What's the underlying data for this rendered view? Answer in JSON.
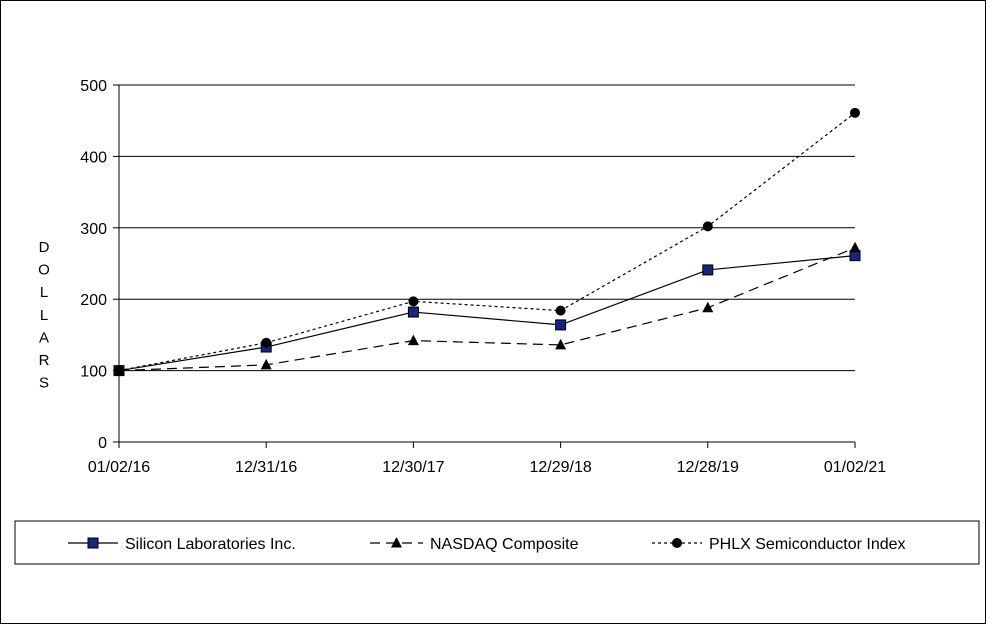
{
  "chart_data": {
    "type": "line",
    "categories": [
      "01/02/16",
      "12/31/16",
      "12/30/17",
      "12/29/18",
      "12/28/19",
      "01/02/21"
    ],
    "ylabel": "DOLLARS",
    "ylim": [
      0,
      500
    ],
    "yticks": [
      0,
      100,
      200,
      300,
      400,
      500
    ],
    "grid": true,
    "legend_position": "bottom",
    "series": [
      {
        "name": "Silicon Laboratories Inc.",
        "values": [
          100,
          133,
          182,
          164,
          241,
          261
        ],
        "line_style": "solid",
        "marker": "square",
        "marker_color": "#1a237e",
        "line_color": "#000000"
      },
      {
        "name": "NASDAQ Composite",
        "values": [
          100,
          108,
          142,
          136,
          188,
          272
        ],
        "line_style": "dashed",
        "marker": "triangle",
        "marker_color": "#000000",
        "line_color": "#000000"
      },
      {
        "name": "PHLX Semiconductor Index",
        "values": [
          100,
          139,
          197,
          184,
          302,
          461
        ],
        "line_style": "dotted",
        "marker": "circle",
        "marker_color": "#000000",
        "line_color": "#000000"
      }
    ]
  }
}
